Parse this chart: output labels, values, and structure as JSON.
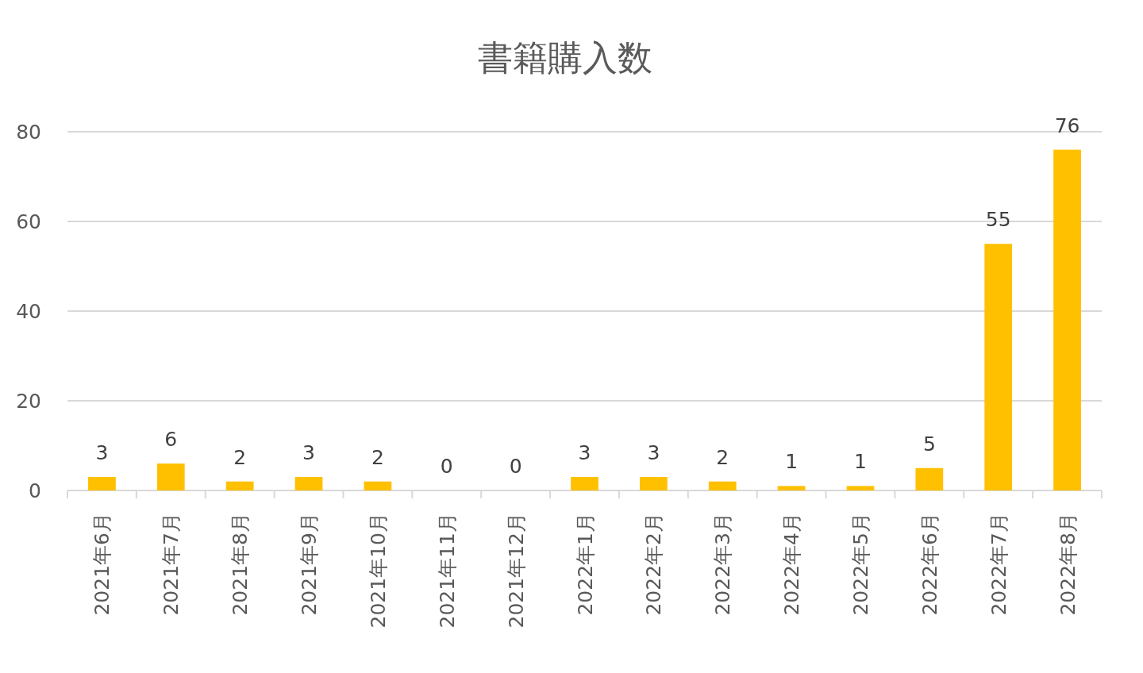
{
  "chart_data": {
    "type": "bar",
    "title": "書籍購入数",
    "categories": [
      "2021年6月",
      "2021年7月",
      "2021年8月",
      "2021年9月",
      "2021年10月",
      "2021年11月",
      "2021年12月",
      "2022年1月",
      "2022年2月",
      "2022年3月",
      "2022年4月",
      "2022年5月",
      "2022年6月",
      "2022年7月",
      "2022年8月"
    ],
    "values": [
      3,
      6,
      2,
      3,
      2,
      0,
      0,
      3,
      3,
      2,
      1,
      1,
      5,
      55,
      76
    ],
    "color": "#ffc000",
    "ylim": [
      0,
      80
    ],
    "yticks": [
      0,
      20,
      40,
      60,
      80
    ],
    "grid": "y",
    "data_labels": true
  }
}
